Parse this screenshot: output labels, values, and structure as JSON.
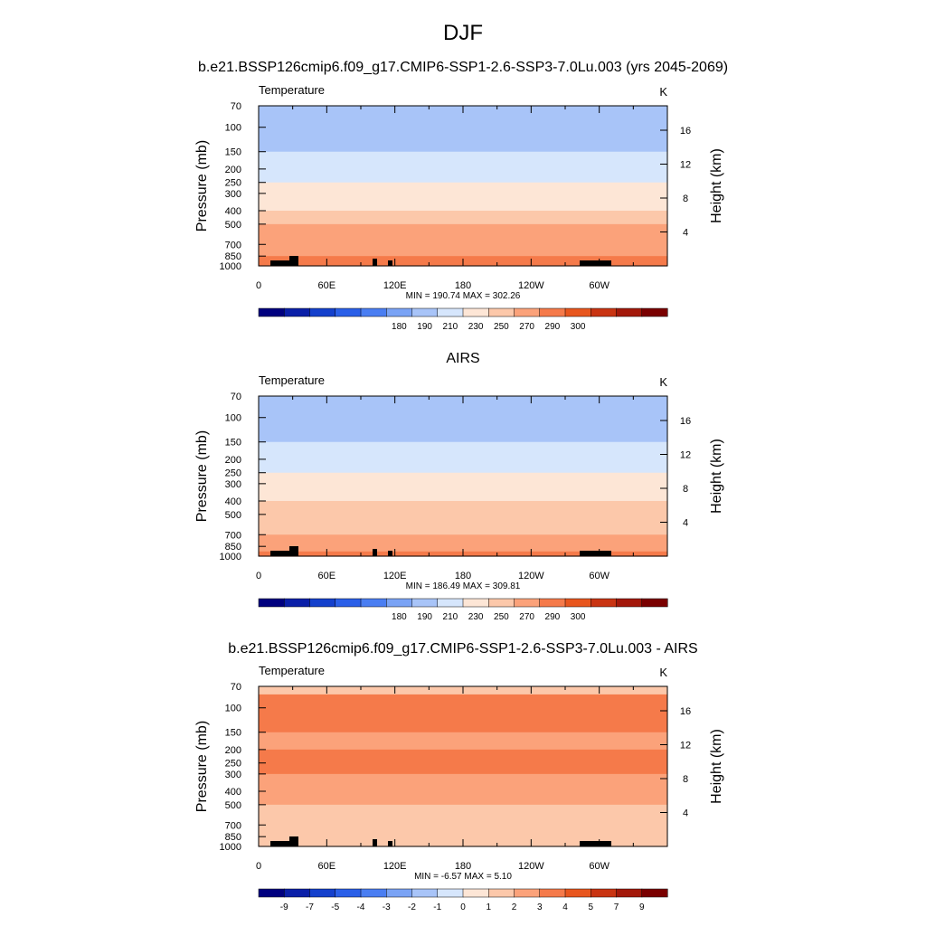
{
  "figure": {
    "title": "DJF",
    "case_title": "b.e21.BSSP126cmip6.f09_g17.CMIP6-SSP1-2.6-SSP3-7.0Lu.003 (yrs 2045-2069)",
    "obs_title": "AIRS",
    "diff_title": "b.e21.BSSP126cmip6.f09_g17.CMIP6-SSP1-2.6-SSP3-7.0Lu.003 - AIRS"
  },
  "chart_data": [
    {
      "type": "heatmap",
      "name": "model",
      "left_label": "Temperature",
      "right_label": "K",
      "ylabel": "Pressure (mb)",
      "ylabel_right": "Height (km)",
      "x_ticks": [
        "0",
        "60E",
        "120E",
        "180",
        "120W",
        "60W"
      ],
      "y_ticks": [
        "70",
        "100",
        "150",
        "200",
        "250",
        "300",
        "400",
        "500",
        "700",
        "850",
        "1000"
      ],
      "height_ticks": [
        "16",
        "12",
        "8",
        "4"
      ],
      "ylim": [
        1000,
        70
      ],
      "min_max_text": "MIN = 190.74  MAX = 302.26",
      "colorbar": {
        "labels": [
          "180",
          "190",
          "210",
          "230",
          "250",
          "270",
          "290",
          "300"
        ],
        "colors": [
          "#00007f",
          "#0a1fa8",
          "#1440cc",
          "#2a5fe8",
          "#4a7ef2",
          "#7aa3f5",
          "#a8c4f8",
          "#d6e6fc",
          "#fde6d6",
          "#fcc8aa",
          "#fba27a",
          "#f57a4a",
          "#e8561e",
          "#c93412",
          "#a3180a",
          "#7a0000"
        ]
      },
      "levels": [
        {
          "p": 70,
          "value": 197
        },
        {
          "p": 100,
          "value": 196
        },
        {
          "p": 125,
          "value": 205
        },
        {
          "p": 150,
          "value": 214
        },
        {
          "p": 200,
          "value": 223
        },
        {
          "p": 250,
          "value": 232
        },
        {
          "p": 300,
          "value": 243
        },
        {
          "p": 400,
          "value": 255
        },
        {
          "p": 500,
          "value": 264
        },
        {
          "p": 700,
          "value": 278
        },
        {
          "p": 850,
          "value": 289
        },
        {
          "p": 925,
          "value": 293
        },
        {
          "p": 1000,
          "value": 298
        }
      ]
    },
    {
      "type": "heatmap",
      "name": "obs",
      "left_label": "Temperature",
      "right_label": "K",
      "ylabel": "Pressure (mb)",
      "ylabel_right": "Height (km)",
      "x_ticks": [
        "0",
        "60E",
        "120E",
        "180",
        "120W",
        "60W"
      ],
      "y_ticks": [
        "70",
        "100",
        "150",
        "200",
        "250",
        "300",
        "400",
        "500",
        "700",
        "850",
        "1000"
      ],
      "height_ticks": [
        "16",
        "12",
        "8",
        "4"
      ],
      "ylim": [
        1000,
        70
      ],
      "min_max_text": "MIN = 186.49  MAX = 309.81",
      "colorbar": {
        "labels": [
          "180",
          "190",
          "210",
          "230",
          "250",
          "270",
          "290",
          "300"
        ],
        "colors": [
          "#00007f",
          "#0a1fa8",
          "#1440cc",
          "#2a5fe8",
          "#4a7ef2",
          "#7aa3f5",
          "#a8c4f8",
          "#d6e6fc",
          "#fde6d6",
          "#fcc8aa",
          "#fba27a",
          "#f57a4a",
          "#e8561e",
          "#c93412",
          "#a3180a",
          "#7a0000"
        ]
      },
      "levels": [
        {
          "p": 70,
          "value": 197
        },
        {
          "p": 100,
          "value": 193
        },
        {
          "p": 125,
          "value": 203
        },
        {
          "p": 150,
          "value": 212
        },
        {
          "p": 200,
          "value": 221
        },
        {
          "p": 250,
          "value": 230
        },
        {
          "p": 300,
          "value": 240
        },
        {
          "p": 400,
          "value": 252
        },
        {
          "p": 500,
          "value": 262
        },
        {
          "p": 700,
          "value": 275
        },
        {
          "p": 850,
          "value": 285
        },
        {
          "p": 925,
          "value": 291
        },
        {
          "p": 1000,
          "value": 296
        }
      ]
    },
    {
      "type": "heatmap",
      "name": "diff",
      "left_label": "Temperature",
      "right_label": "K",
      "ylabel": "Pressure (mb)",
      "ylabel_right": "Height (km)",
      "x_ticks": [
        "0",
        "60E",
        "120E",
        "180",
        "120W",
        "60W"
      ],
      "y_ticks": [
        "70",
        "100",
        "150",
        "200",
        "250",
        "300",
        "400",
        "500",
        "700",
        "850",
        "1000"
      ],
      "height_ticks": [
        "16",
        "12",
        "8",
        "4"
      ],
      "ylim": [
        1000,
        70
      ],
      "min_max_text": "MIN =  -6.57  MAX =   5.10",
      "colorbar": {
        "labels": [
          "-9",
          "-7",
          "-5",
          "-4",
          "-3",
          "-2",
          "-1",
          "0",
          "1",
          "2",
          "3",
          "4",
          "5",
          "7",
          "9"
        ],
        "colors": [
          "#00007f",
          "#0a1fa8",
          "#1440cc",
          "#2a5fe8",
          "#4a7ef2",
          "#7aa3f5",
          "#a8c4f8",
          "#d6e6fc",
          "#fde6d6",
          "#fcc8aa",
          "#fba27a",
          "#f57a4a",
          "#e8561e",
          "#c93412",
          "#a3180a",
          "#7a0000"
        ]
      },
      "levels": [
        {
          "p": 70,
          "value": 0.5
        },
        {
          "p": 80,
          "value": 2.0
        },
        {
          "p": 100,
          "value": 4.2
        },
        {
          "p": 150,
          "value": 2.5
        },
        {
          "p": 200,
          "value": 2.8
        },
        {
          "p": 300,
          "value": 3.4
        },
        {
          "p": 400,
          "value": 2.5
        },
        {
          "p": 500,
          "value": 1.5
        },
        {
          "p": 700,
          "value": 1.2
        },
        {
          "p": 850,
          "value": 1.5
        },
        {
          "p": 1000,
          "value": 1.0
        }
      ]
    }
  ]
}
